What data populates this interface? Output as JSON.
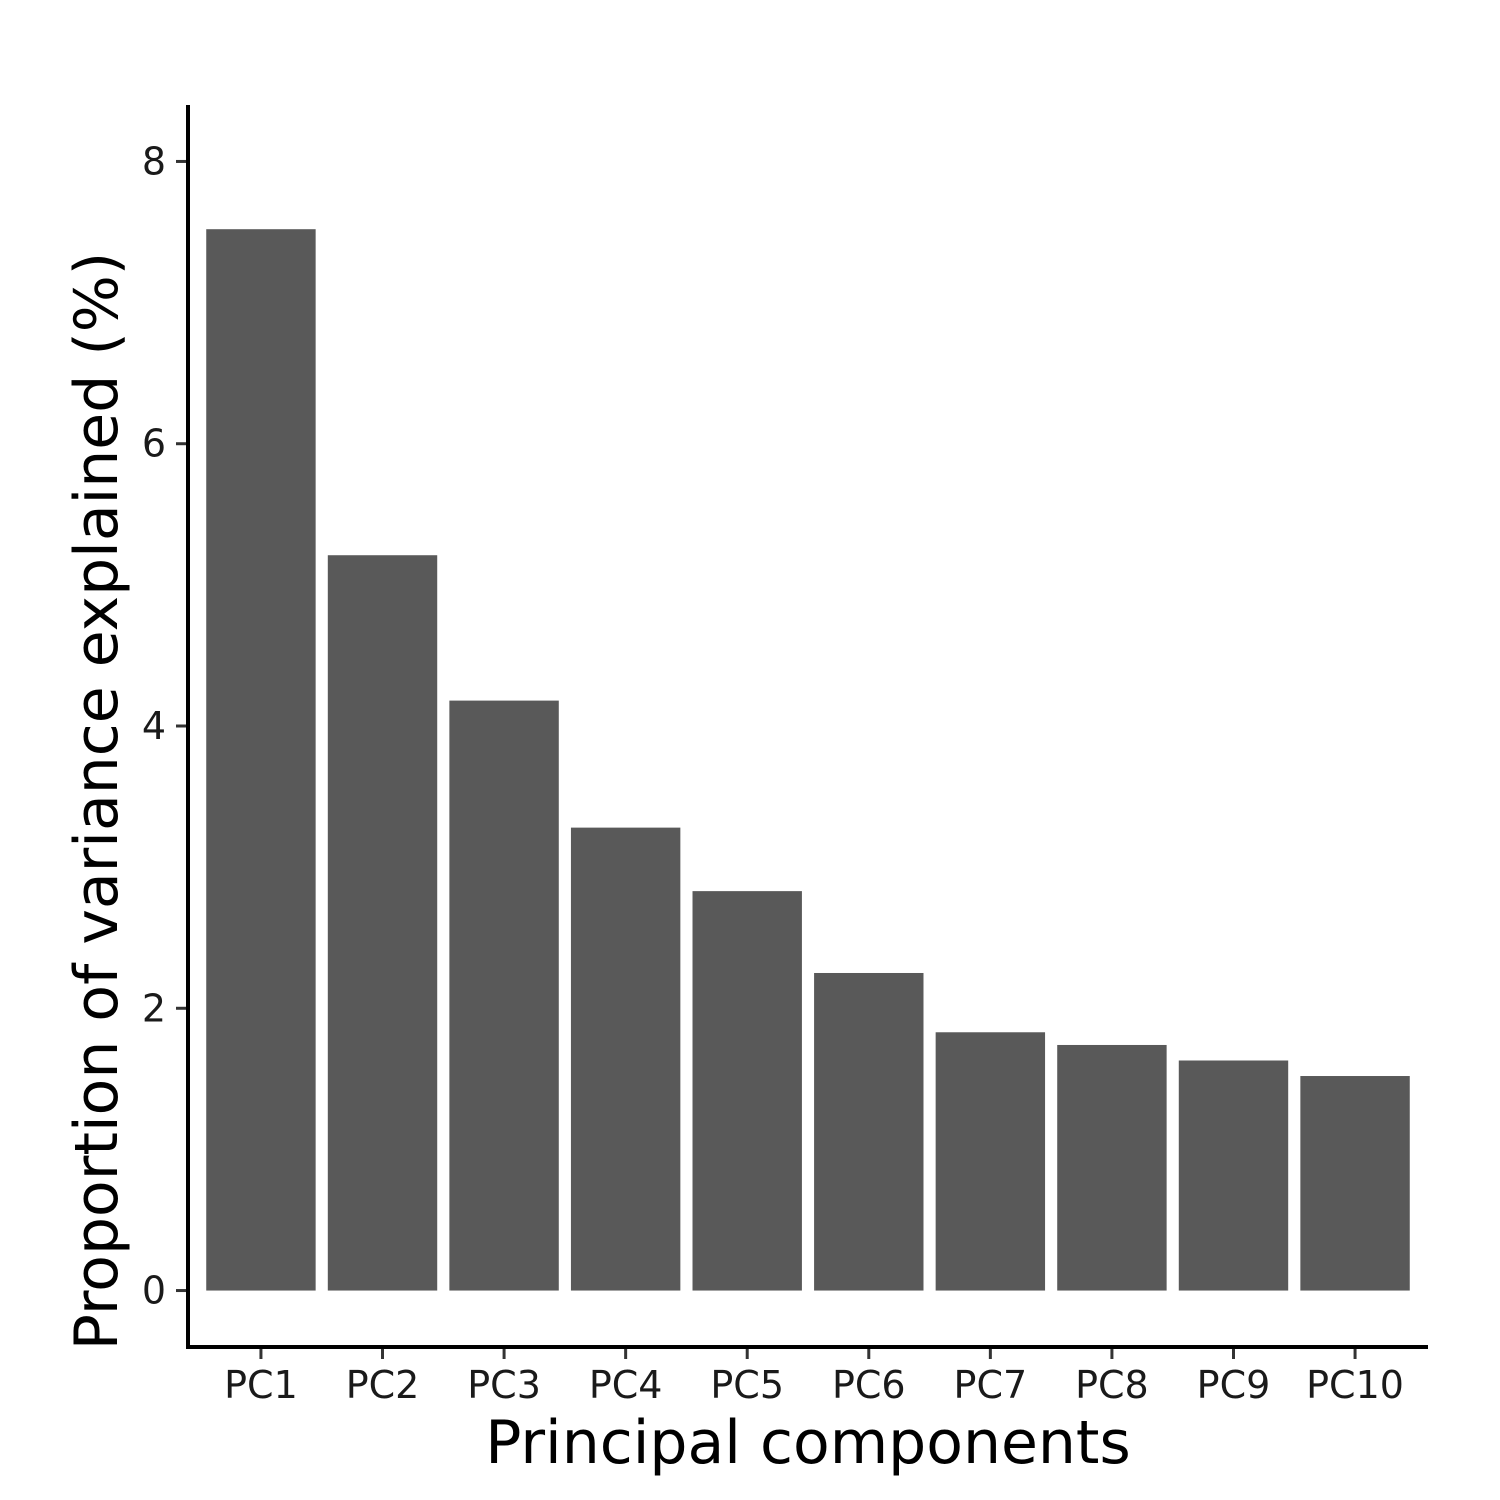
{
  "chart_data": {
    "type": "bar",
    "title": "",
    "xlabel": "Principal components",
    "ylabel": "Proportion of variance explained (%)",
    "categories": [
      "PC1",
      "PC2",
      "PC3",
      "PC4",
      "PC5",
      "PC6",
      "PC7",
      "PC8",
      "PC9",
      "PC10"
    ],
    "values": [
      7.52,
      5.21,
      4.18,
      3.28,
      2.83,
      2.25,
      1.83,
      1.74,
      1.63,
      1.52
    ],
    "y_ticks": [
      0,
      2,
      4,
      6,
      8
    ],
    "ylim": [
      -0.4,
      8.4
    ],
    "grid": false,
    "legend": "none",
    "colors": {
      "bar": "#595959",
      "axis": "#000000",
      "text": "#1a1a1a"
    }
  }
}
